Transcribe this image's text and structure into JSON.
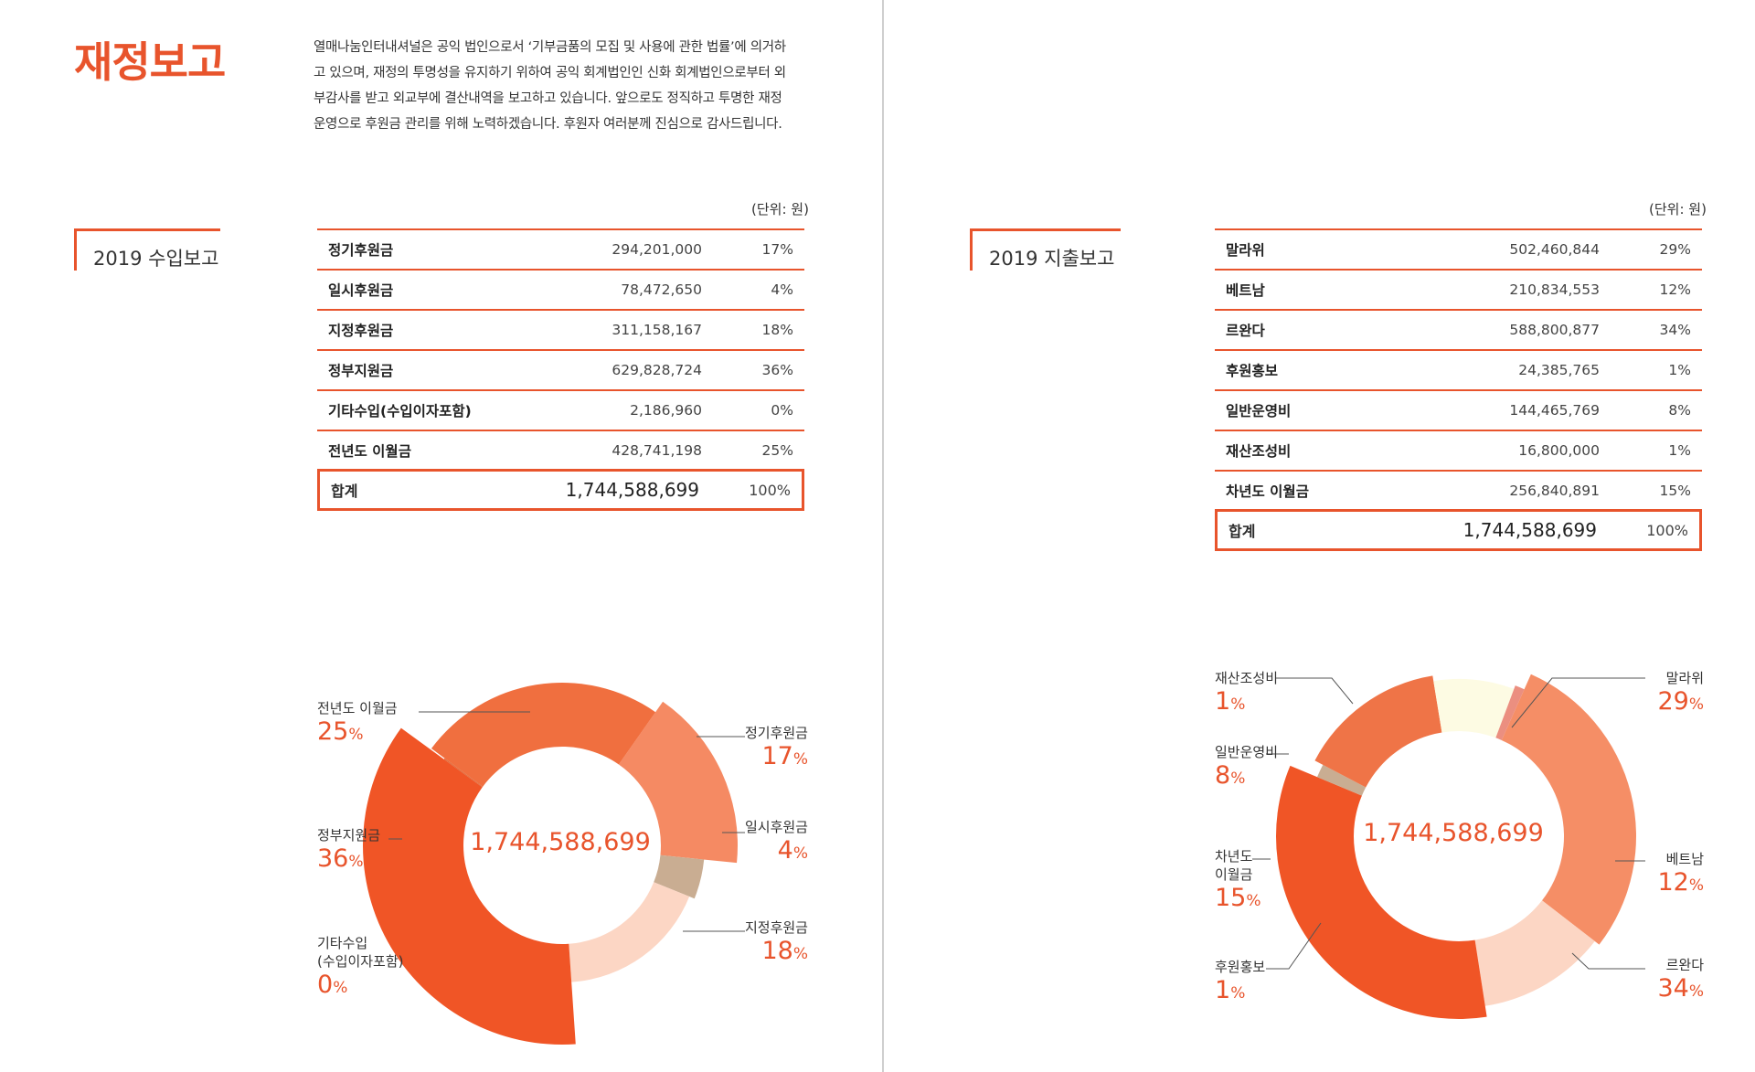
{
  "page_title": "재정보고",
  "intro": [
    "열매나눔인터내셔널은 공익 법인으로서 ‘기부금품의 모집 및 사용에 관한 법률’에 의거하",
    "고 있으며, 재정의 투명성을 유지하기 위하여 공익 회계법인인 신화 회계법인으로부터 외",
    "부감사를 받고 외교부에 결산내역을 보고하고 있습니다. 앞으로도 정직하고 투명한 재정",
    "운영으로 후원금 관리를 위해 노력하겠습니다. 후원자 여러분께 진심으로 감사드립니다."
  ],
  "income": {
    "title": "2019 수입보고",
    "unit": "(단위: 원)",
    "rows": [
      {
        "label": "정기후원금",
        "amount": "294,201,000",
        "pct": "17%"
      },
      {
        "label": "일시후원금",
        "amount": "78,472,650",
        "pct": "4%"
      },
      {
        "label": "지정후원금",
        "amount": "311,158,167",
        "pct": "18%"
      },
      {
        "label": "정부지원금",
        "amount": "629,828,724",
        "pct": "36%"
      },
      {
        "label": "기타수입(수입이자포함)",
        "amount": "2,186,960",
        "pct": "0%"
      },
      {
        "label": "전년도 이월금",
        "amount": "428,741,198",
        "pct": "25%"
      }
    ],
    "total": {
      "label": "합계",
      "amount": "1,744,588,699",
      "pct": "100%"
    },
    "center_total": "1,744,588,699"
  },
  "expense": {
    "title": "2019 지출보고",
    "unit": "(단위: 원)",
    "rows": [
      {
        "label": "말라위",
        "amount": "502,460,844",
        "pct": "29%"
      },
      {
        "label": "베트남",
        "amount": "210,834,553",
        "pct": "12%"
      },
      {
        "label": "르완다",
        "amount": "588,800,877",
        "pct": "34%"
      },
      {
        "label": "후원홍보",
        "amount": "24,385,765",
        "pct": "1%"
      },
      {
        "label": "일반운영비",
        "amount": "144,465,769",
        "pct": "8%"
      },
      {
        "label": "재산조성비",
        "amount": "16,800,000",
        "pct": "1%"
      },
      {
        "label": "차년도 이월금",
        "amount": "256,840,891",
        "pct": "15%"
      }
    ],
    "total": {
      "label": "합계",
      "amount": "1,744,588,699",
      "pct": "100%"
    },
    "center_total": "1,744,588,699"
  },
  "chart_data": [
    {
      "type": "pie",
      "categories": [
        "정기후원금",
        "일시후원금",
        "지정후원금",
        "정부지원금",
        "기타수입(수입이자포함)",
        "전년도 이월금"
      ],
      "values": [
        294201000,
        78472650,
        311158167,
        629828724,
        2186960,
        428741198
      ],
      "percent_labels": [
        "17",
        "4",
        "18",
        "36",
        "0",
        "25"
      ],
      "colors": [
        "#f58a63",
        "#c9ad92",
        "#fcd6c4",
        "#f05526",
        "#e06a3a",
        "#f06f3f"
      ],
      "center_label": "1,744,588,699"
    },
    {
      "type": "pie",
      "categories": [
        "말라위",
        "베트남",
        "르완다",
        "후원홍보",
        "차년도 이월금",
        "일반운영비",
        "재산조성비"
      ],
      "values": [
        502460844,
        210834553,
        588800877,
        24385765,
        256840891,
        144465769,
        16800000
      ],
      "percent_labels": [
        "29",
        "12",
        "34",
        "1",
        "15",
        "8",
        "1"
      ],
      "colors": [
        "#f58e66",
        "#fcd6c4",
        "#f05526",
        "#c9ad92",
        "#ef7447",
        "#fdfbe3",
        "#eb8f80"
      ],
      "center_label": "1,744,588,699"
    }
  ]
}
